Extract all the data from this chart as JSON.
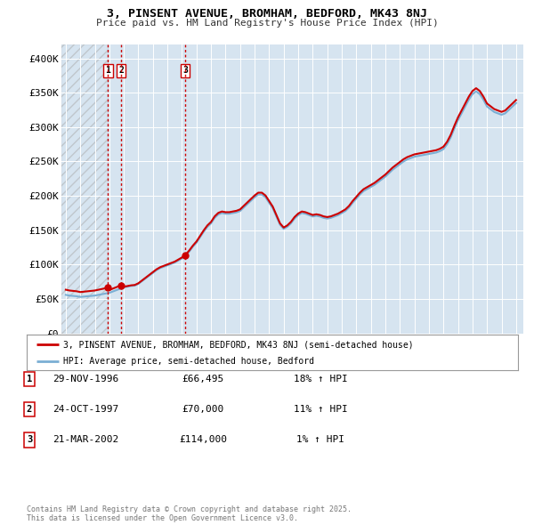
{
  "title_line1": "3, PINSENT AVENUE, BROMHAM, BEDFORD, MK43 8NJ",
  "title_line2": "Price paid vs. HM Land Registry's House Price Index (HPI)",
  "ylim": [
    0,
    420000
  ],
  "xlim_start": 1993.7,
  "xlim_end": 2025.5,
  "bg_color": "#d6e4f0",
  "grid_color": "#ffffff",
  "sale_color": "#cc0000",
  "hpi_color": "#7bafd4",
  "sale_label": "3, PINSENT AVENUE, BROMHAM, BEDFORD, MK43 8NJ (semi-detached house)",
  "hpi_label": "HPI: Average price, semi-detached house, Bedford",
  "transactions": [
    {
      "id": 1,
      "date_num": 1996.91,
      "price": 66495,
      "label": "1",
      "date_str": "29-NOV-1996",
      "price_str": "£66,495",
      "hpi_str": "18% ↑ HPI"
    },
    {
      "id": 2,
      "date_num": 1997.81,
      "price": 70000,
      "label": "2",
      "date_str": "24-OCT-1997",
      "price_str": "£70,000",
      "hpi_str": "11% ↑ HPI"
    },
    {
      "id": 3,
      "date_num": 2002.22,
      "price": 114000,
      "label": "3",
      "date_str": "21-MAR-2002",
      "price_str": "£114,000",
      "hpi_str": "1% ↑ HPI"
    }
  ],
  "yticks": [
    0,
    50000,
    100000,
    150000,
    200000,
    250000,
    300000,
    350000,
    400000
  ],
  "ytick_labels": [
    "£0",
    "£50K",
    "£100K",
    "£150K",
    "£200K",
    "£250K",
    "£300K",
    "£350K",
    "£400K"
  ],
  "footer_text": "Contains HM Land Registry data © Crown copyright and database right 2025.\nThis data is licensed under the Open Government Licence v3.0.",
  "hpi_data_years": [
    1994.0,
    1994.25,
    1994.5,
    1994.75,
    1995.0,
    1995.25,
    1995.5,
    1995.75,
    1996.0,
    1996.25,
    1996.5,
    1996.75,
    1997.0,
    1997.25,
    1997.5,
    1997.75,
    1998.0,
    1998.25,
    1998.5,
    1998.75,
    1999.0,
    1999.25,
    1999.5,
    1999.75,
    2000.0,
    2000.25,
    2000.5,
    2000.75,
    2001.0,
    2001.25,
    2001.5,
    2001.75,
    2002.0,
    2002.25,
    2002.5,
    2002.75,
    2003.0,
    2003.25,
    2003.5,
    2003.75,
    2004.0,
    2004.25,
    2004.5,
    2004.75,
    2005.0,
    2005.25,
    2005.5,
    2005.75,
    2006.0,
    2006.25,
    2006.5,
    2006.75,
    2007.0,
    2007.25,
    2007.5,
    2007.75,
    2008.0,
    2008.25,
    2008.5,
    2008.75,
    2009.0,
    2009.25,
    2009.5,
    2009.75,
    2010.0,
    2010.25,
    2010.5,
    2010.75,
    2011.0,
    2011.25,
    2011.5,
    2011.75,
    2012.0,
    2012.25,
    2012.5,
    2012.75,
    2013.0,
    2013.25,
    2013.5,
    2013.75,
    2014.0,
    2014.25,
    2014.5,
    2014.75,
    2015.0,
    2015.25,
    2015.5,
    2015.75,
    2016.0,
    2016.25,
    2016.5,
    2016.75,
    2017.0,
    2017.25,
    2017.5,
    2017.75,
    2018.0,
    2018.25,
    2018.5,
    2018.75,
    2019.0,
    2019.25,
    2019.5,
    2019.75,
    2020.0,
    2020.25,
    2020.5,
    2020.75,
    2021.0,
    2021.25,
    2021.5,
    2021.75,
    2022.0,
    2022.25,
    2022.5,
    2022.75,
    2023.0,
    2023.25,
    2023.5,
    2023.75,
    2024.0,
    2024.25,
    2024.5,
    2024.75,
    2025.0
  ],
  "hpi_data_values": [
    56000,
    55000,
    54500,
    54000,
    53000,
    53500,
    54000,
    54500,
    55000,
    56000,
    57000,
    58000,
    59000,
    61000,
    63000,
    65000,
    67000,
    68000,
    69000,
    69500,
    72000,
    76000,
    80000,
    84000,
    88000,
    92000,
    95000,
    97000,
    99000,
    101000,
    103000,
    106000,
    109000,
    113000,
    119000,
    126000,
    132000,
    140000,
    148000,
    155000,
    160000,
    168000,
    173000,
    175000,
    174000,
    174000,
    175000,
    176000,
    178000,
    183000,
    188000,
    193000,
    198000,
    202000,
    202000,
    198000,
    190000,
    182000,
    170000,
    158000,
    152000,
    155000,
    160000,
    167000,
    172000,
    175000,
    174000,
    172000,
    170000,
    171000,
    170000,
    168000,
    167000,
    168000,
    170000,
    172000,
    175000,
    178000,
    183000,
    190000,
    196000,
    202000,
    207000,
    210000,
    213000,
    216000,
    220000,
    224000,
    228000,
    233000,
    238000,
    242000,
    246000,
    250000,
    253000,
    255000,
    257000,
    258000,
    259000,
    260000,
    261000,
    262000,
    263000,
    265000,
    268000,
    275000,
    285000,
    298000,
    310000,
    320000,
    330000,
    340000,
    348000,
    352000,
    348000,
    340000,
    330000,
    326000,
    322000,
    320000,
    318000,
    320000,
    325000,
    330000,
    335000
  ]
}
